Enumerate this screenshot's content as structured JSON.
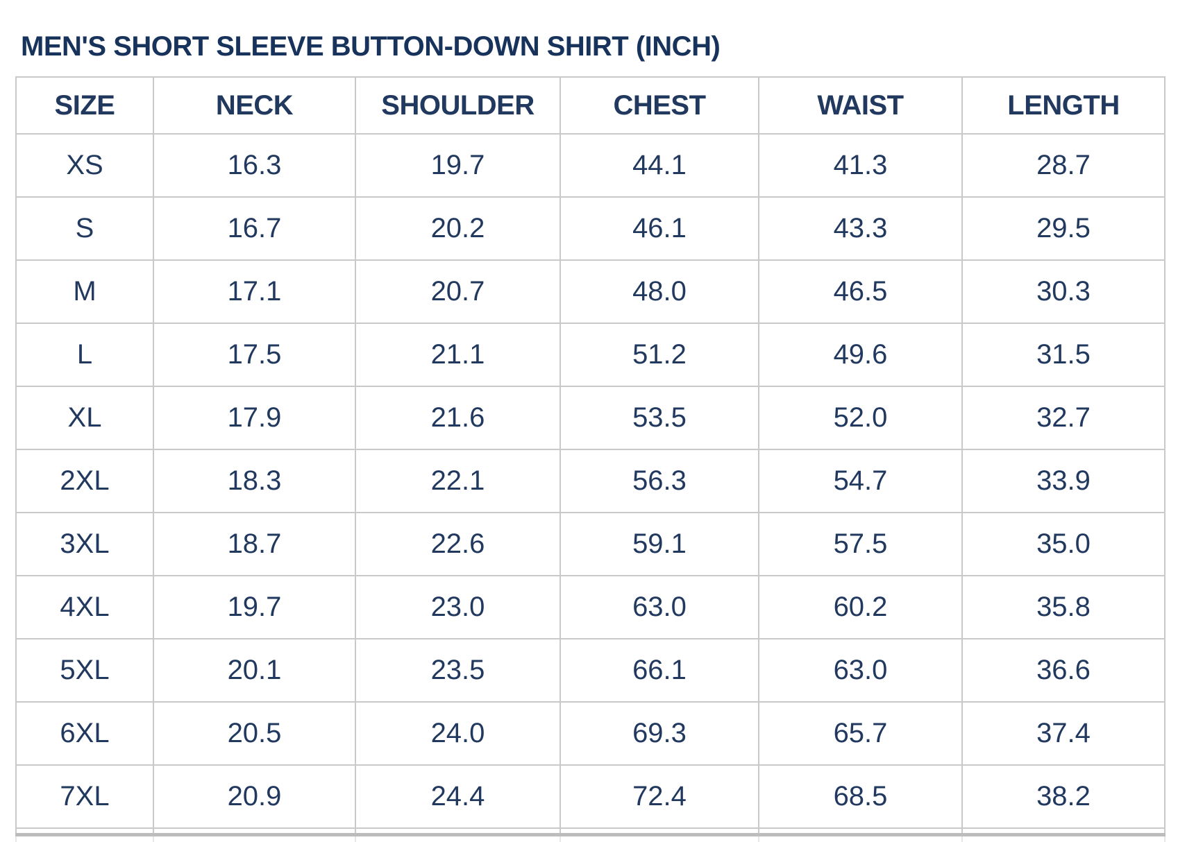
{
  "title": "MEN'S SHORT SLEEVE BUTTON-DOWN SHIRT (INCH)",
  "table": {
    "columns": [
      "SIZE",
      "NECK",
      "SHOULDER",
      "CHEST",
      "WAIST",
      "LENGTH"
    ],
    "rows": [
      [
        "XS",
        "16.3",
        "19.7",
        "44.1",
        "41.3",
        "28.7"
      ],
      [
        "S",
        "16.7",
        "20.2",
        "46.1",
        "43.3",
        "29.5"
      ],
      [
        "M",
        "17.1",
        "20.7",
        "48.0",
        "46.5",
        "30.3"
      ],
      [
        "L",
        "17.5",
        "21.1",
        "51.2",
        "49.6",
        "31.5"
      ],
      [
        "XL",
        "17.9",
        "21.6",
        "53.5",
        "52.0",
        "32.7"
      ],
      [
        "2XL",
        "18.3",
        "22.1",
        "56.3",
        "54.7",
        "33.9"
      ],
      [
        "3XL",
        "18.7",
        "22.6",
        "59.1",
        "57.5",
        "35.0"
      ],
      [
        "4XL",
        "19.7",
        "23.0",
        "63.0",
        "60.2",
        "35.8"
      ],
      [
        "5XL",
        "20.1",
        "23.5",
        "66.1",
        "63.0",
        "36.6"
      ],
      [
        "6XL",
        "20.5",
        "24.0",
        "69.3",
        "65.7",
        "37.4"
      ],
      [
        "7XL",
        "20.9",
        "24.4",
        "72.4",
        "68.5",
        "38.2"
      ]
    ],
    "unit": "INCH"
  },
  "colors": {
    "title_navy": "#17335c",
    "text_navy": "#22395f",
    "border_gray": "#c9c9c9",
    "bottom_band_gray": "#bcbcbc",
    "background": "#ffffff"
  }
}
